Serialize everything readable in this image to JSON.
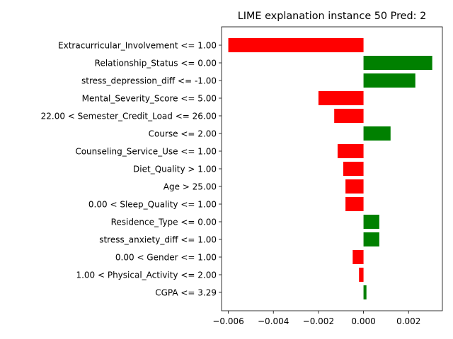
{
  "chart_data": {
    "type": "bar",
    "orientation": "horizontal",
    "title": "LIME explanation instance 50 Pred: 2",
    "xlabel": "",
    "ylabel": "",
    "xlim": [
      -0.0063,
      0.0035
    ],
    "x_ticks": [
      -0.006,
      -0.004,
      -0.002,
      0.0,
      0.002
    ],
    "x_tick_labels": [
      "−0.006",
      "−0.004",
      "−0.002",
      "0.000",
      "0.002"
    ],
    "grid": false,
    "legend": "none",
    "colors": {
      "positive": "#008000",
      "negative": "#ff0000"
    },
    "categories": [
      "Extracurricular_Involvement <= 1.00",
      "Relationship_Status <= 0.00",
      "stress_depression_diff <= -1.00",
      "Mental_Severity_Score <= 5.00",
      "22.00 < Semester_Credit_Load <= 26.00",
      "Course <= 2.00",
      "Counseling_Service_Use <= 1.00",
      "Diet_Quality > 1.00",
      "Age > 25.00",
      "0.00 < Sleep_Quality <= 1.00",
      "Residence_Type <= 0.00",
      "stress_anxiety_diff <= 1.00",
      "0.00 < Gender <= 1.00",
      "1.00 < Physical_Activity <= 2.00",
      "CGPA <= 3.29"
    ],
    "values": [
      -0.006,
      0.00305,
      0.0023,
      -0.002,
      -0.0013,
      0.0012,
      -0.00115,
      -0.0009,
      -0.0008,
      -0.0008,
      0.0007,
      0.0007,
      -0.00048,
      -0.0002,
      0.00013
    ]
  }
}
